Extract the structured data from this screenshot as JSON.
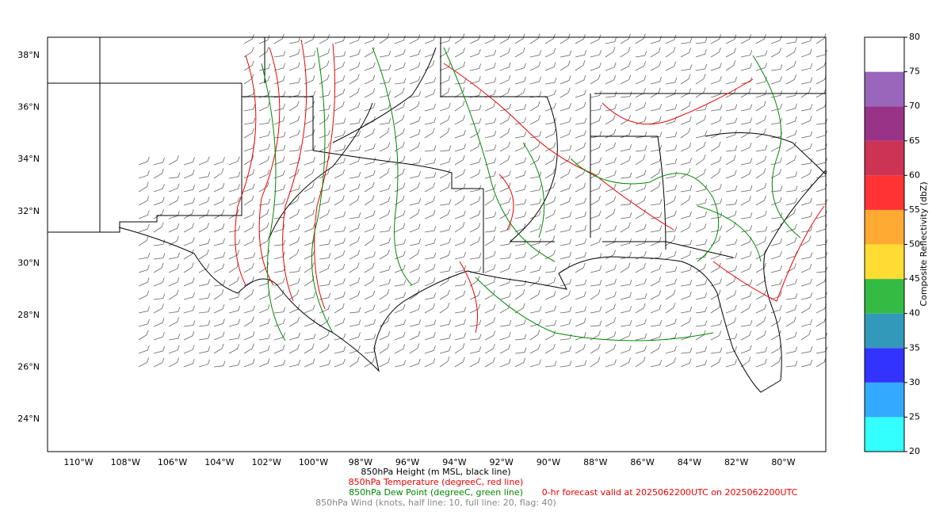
{
  "map": {
    "lat_labels": [
      "38°N",
      "36°N",
      "34°N",
      "32°N",
      "30°N",
      "28°N",
      "26°N",
      "24°N"
    ],
    "lon_labels": [
      "110°W",
      "108°W",
      "106°W",
      "104°W",
      "102°W",
      "100°W",
      "98°W",
      "96°W",
      "94°W",
      "92°W",
      "90°W",
      "88°W",
      "86°W",
      "84°W",
      "82°W",
      "80°W"
    ]
  },
  "colorbar": {
    "label": "Composite Reflectivity (dbZ)",
    "ticks": [
      20,
      25,
      30,
      35,
      40,
      45,
      50,
      55,
      60,
      65,
      70,
      75,
      80
    ],
    "colors": [
      "#33ffff",
      "#33aaff",
      "#3333ff",
      "#3399bb",
      "#33bb44",
      "#ffdd33",
      "#ffaa33",
      "#ff3333",
      "#cc3355",
      "#993388",
      "#9966bb",
      "#ffffff"
    ]
  },
  "captions": {
    "height": "850hPa Height (m MSL, black line)",
    "temperature": "850hPa Temperature (degreeC, red line)",
    "dewpoint": "850hPa Dew Point (degreeC, green line)",
    "valid": "0-hr forecast valid at 2025062200UTC on 2025062200UTC",
    "wind": "850hPa Wind (knots, half line: 10, full line: 20, flag: 40)"
  }
}
